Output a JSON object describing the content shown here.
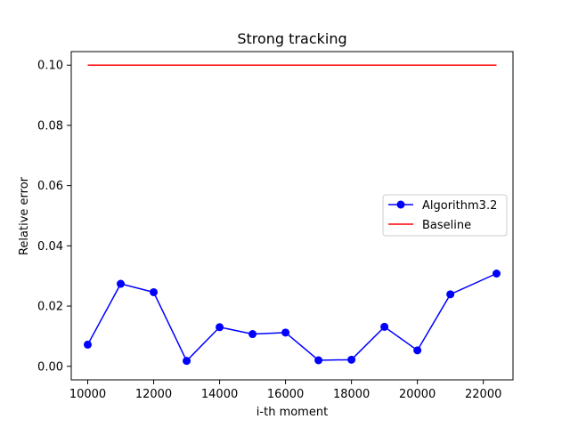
{
  "chart_data": {
    "type": "line",
    "title": "Strong tracking",
    "xlabel": "i-th moment",
    "ylabel": "Relative error",
    "xlim": [
      9500,
      22900
    ],
    "ylim": [
      -0.0045,
      0.1045
    ],
    "xticks": [
      10000,
      12000,
      14000,
      16000,
      18000,
      20000,
      22000
    ],
    "yticks": [
      0.0,
      0.02,
      0.04,
      0.06,
      0.08,
      0.1
    ],
    "xtick_labels": [
      "10000",
      "12000",
      "14000",
      "16000",
      "18000",
      "20000",
      "22000"
    ],
    "ytick_labels": [
      "0.00",
      "0.02",
      "0.04",
      "0.06",
      "0.08",
      "0.10"
    ],
    "grid": false,
    "legend_position": "center-right",
    "series": [
      {
        "name": "Algorithm3.2",
        "color": "#0000ff",
        "marker": "circle",
        "x": [
          10000,
          11000,
          12000,
          13000,
          14000,
          15000,
          16000,
          17000,
          18000,
          19000,
          20000,
          21000,
          22400
        ],
        "y": [
          0.0072,
          0.0274,
          0.0246,
          0.0018,
          0.013,
          0.0107,
          0.0112,
          0.002,
          0.0022,
          0.0131,
          0.0053,
          0.0239,
          0.0308
        ]
      },
      {
        "name": "Baseline",
        "color": "#ff0000",
        "marker": "none",
        "x": [
          10000,
          22400
        ],
        "y": [
          0.1,
          0.1
        ]
      }
    ]
  }
}
